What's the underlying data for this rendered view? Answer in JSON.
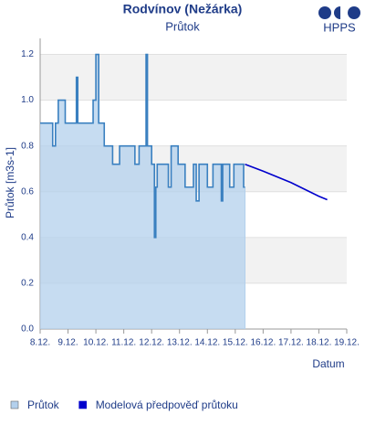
{
  "chart_data": {
    "type": "line",
    "title": "Rodvínov (Nežárka)",
    "subtitle": "Průtok",
    "logo": "HPPS",
    "y_label": "Průtok [m3s-1]",
    "x_label": "Datum",
    "xlim": [
      8,
      19
    ],
    "ylim": [
      0,
      1.27
    ],
    "xticks": [
      {
        "value": 8,
        "label": "8.12."
      },
      {
        "value": 9,
        "label": "9.12."
      },
      {
        "value": 10,
        "label": "10.12."
      },
      {
        "value": 11,
        "label": "11.12."
      },
      {
        "value": 12,
        "label": "12.12."
      },
      {
        "value": 13,
        "label": "13.12."
      },
      {
        "value": 14,
        "label": "14.12."
      },
      {
        "value": 15,
        "label": "15.12."
      },
      {
        "value": 16,
        "label": "16.12."
      },
      {
        "value": 17,
        "label": "17.12."
      },
      {
        "value": 18,
        "label": "18.12."
      },
      {
        "value": 19,
        "label": "19.12."
      }
    ],
    "yticks": [
      {
        "value": 0,
        "label": "0.0"
      },
      0.2,
      0.4,
      0.6,
      0.8,
      {
        "value": 1,
        "label": "1.0"
      },
      1.2
    ],
    "grid": true,
    "bands": true,
    "series": [
      {
        "name": "Průtok",
        "color": "#3a80c0",
        "fill": "#b3d0ec",
        "area": true,
        "x": [
          8,
          8.45,
          8.45,
          8.55,
          8.55,
          8.65,
          8.65,
          8.9,
          8.9,
          9.3,
          9.3,
          9.35,
          9.35,
          9.9,
          9.9,
          10.0,
          10.0,
          10.1,
          10.1,
          10.3,
          10.3,
          10.6,
          10.6,
          10.85,
          10.85,
          11.4,
          11.4,
          11.55,
          11.55,
          11.8,
          11.8,
          11.85,
          11.85,
          12.0,
          12.0,
          12.1,
          12.1,
          12.15,
          12.15,
          12.2,
          12.2,
          12.6,
          12.6,
          12.7,
          12.7,
          12.95,
          12.95,
          13.2,
          13.2,
          13.5,
          13.5,
          13.6,
          13.6,
          13.7,
          13.7,
          14.0,
          14.0,
          14.2,
          14.2,
          14.5,
          14.5,
          14.55,
          14.55,
          14.8,
          14.8,
          14.95,
          14.95,
          15.3,
          15.3,
          15.35
        ],
        "values": [
          0.9,
          0.9,
          0.8,
          0.8,
          0.9,
          0.9,
          1.0,
          1.0,
          0.9,
          0.9,
          1.1,
          1.1,
          0.9,
          0.9,
          1.0,
          1.0,
          1.2,
          1.2,
          0.9,
          0.9,
          0.8,
          0.8,
          0.72,
          0.72,
          0.8,
          0.8,
          0.72,
          0.72,
          0.8,
          0.8,
          1.2,
          1.2,
          0.8,
          0.8,
          0.72,
          0.72,
          0.4,
          0.4,
          0.62,
          0.62,
          0.72,
          0.72,
          0.62,
          0.62,
          0.8,
          0.8,
          0.72,
          0.72,
          0.62,
          0.62,
          0.72,
          0.72,
          0.56,
          0.56,
          0.72,
          0.72,
          0.62,
          0.62,
          0.72,
          0.72,
          0.56,
          0.56,
          0.72,
          0.72,
          0.62,
          0.62,
          0.72,
          0.72,
          0.62,
          0.62
        ]
      },
      {
        "name": "Modelová předpověď průtoku",
        "color": "#0000cc",
        "area": false,
        "x": [
          15.35,
          16,
          17,
          18,
          18.3
        ],
        "values": [
          0.72,
          0.69,
          0.64,
          0.58,
          0.565
        ]
      }
    ]
  }
}
